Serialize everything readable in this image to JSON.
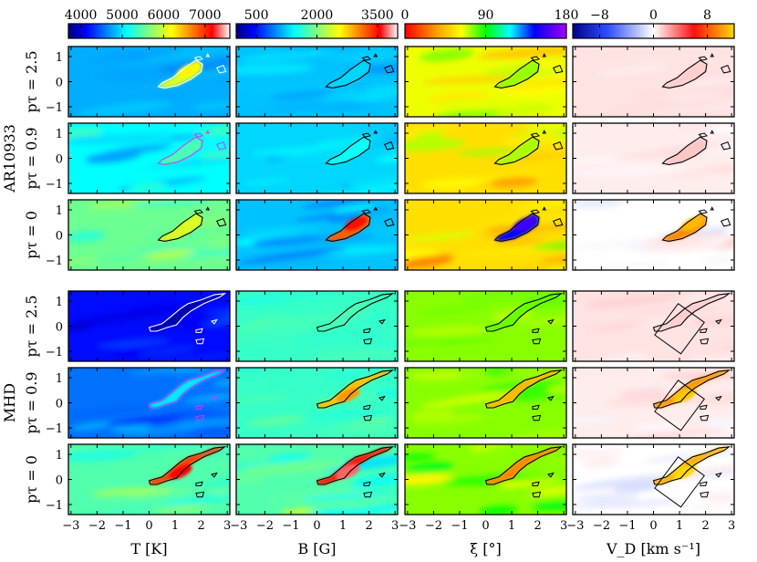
{
  "chart_data": {
    "type": "heatmap",
    "title": "",
    "row_groups": [
      {
        "name": "AR10933",
        "rows": [
          "pτ = 2.5",
          "pτ = 0.9",
          "pτ = 0"
        ]
      },
      {
        "name": "MHD",
        "rows": [
          "pτ = 2.5",
          "pτ = 0.9",
          "pτ = 0"
        ]
      }
    ],
    "columns": [
      {
        "quantity": "T",
        "xlabel": "T [K]",
        "colorbar_ticks": [
          "4000",
          "5000",
          "6000",
          "7000"
        ],
        "colorbar_values": [
          4000,
          5000,
          6000,
          7000
        ],
        "colorbar_range": [
          3700,
          7600
        ],
        "colormap": "jet"
      },
      {
        "quantity": "B",
        "xlabel": "B [G]",
        "colorbar_ticks": [
          "500",
          "2000",
          "3500"
        ],
        "colorbar_values": [
          500,
          2000,
          3500
        ],
        "colorbar_range": [
          0,
          4000
        ],
        "colormap": "jet"
      },
      {
        "quantity": "xi",
        "xlabel": "ξ [°]",
        "colorbar_ticks": [
          "0",
          "90",
          "180"
        ],
        "colorbar_values": [
          0,
          90,
          180
        ],
        "colorbar_range": [
          0,
          180
        ],
        "colormap": "rainbow"
      },
      {
        "quantity": "V_D",
        "xlabel": "V_D [km s⁻¹]",
        "colorbar_ticks": [
          "−8",
          "0",
          "8"
        ],
        "colorbar_values": [
          -8,
          0,
          8
        ],
        "colorbar_range": [
          -12,
          12
        ],
        "colormap": "diverging"
      }
    ],
    "x_ticks": [
      "−3",
      "−2",
      "−1",
      "0",
      "1",
      "2",
      "3"
    ],
    "x_tick_values": [
      -3,
      -2,
      -1,
      0,
      1,
      2,
      3
    ],
    "y_ticks": [
      "−1",
      "0",
      "1"
    ],
    "y_tick_values": [
      -1,
      0,
      1
    ],
    "xlim": [
      -3.1,
      3.1
    ],
    "ylim": [
      -1.4,
      1.4
    ],
    "panels": [
      [
        {
          "base": 0.28,
          "blob": 0.32,
          "bands": 0.05
        },
        {
          "base": 0.3,
          "blob": 0.02,
          "bands": 0.06
        },
        {
          "base": 0.36,
          "blob": 0.05,
          "bands": 0.1
        },
        {
          "base": 0.53,
          "blob": 0.02,
          "bands": 0.01
        }
      ],
      [
        {
          "base": 0.36,
          "blob": 0.08,
          "bands": 0.1
        },
        {
          "base": 0.32,
          "blob": 0.05,
          "bands": 0.06
        },
        {
          "base": 0.3,
          "blob": 0.1,
          "bands": 0.12
        },
        {
          "base": 0.52,
          "blob": 0.04,
          "bands": 0.02
        }
      ],
      [
        {
          "base": 0.48,
          "blob": 0.12,
          "bands": 0.08
        },
        {
          "base": 0.3,
          "blob": 0.5,
          "bands": 0.08
        },
        {
          "base": 0.3,
          "blob": 0.5,
          "bands": 0.14
        },
        {
          "base": 0.5,
          "blob": 0.4,
          "bands": 0.05
        }
      ],
      [
        {
          "base": 0.12,
          "blob": -0.08,
          "bands": 0.06
        },
        {
          "base": 0.42,
          "blob": 0.02,
          "bands": 0.03
        },
        {
          "base": 0.42,
          "blob": 0.02,
          "bands": 0.03
        },
        {
          "base": 0.53,
          "blob": 0.02,
          "bands": 0.02
        }
      ],
      [
        {
          "base": 0.22,
          "blob": 0.12,
          "bands": 0.08
        },
        {
          "base": 0.42,
          "blob": 0.28,
          "bands": 0.05
        },
        {
          "base": 0.42,
          "blob": -0.18,
          "bands": 0.06
        },
        {
          "base": 0.52,
          "blob": 0.4,
          "bands": 0.05
        }
      ],
      [
        {
          "base": 0.45,
          "blob": 0.38,
          "bands": 0.1
        },
        {
          "base": 0.45,
          "blob": 0.42,
          "bands": 0.12
        },
        {
          "base": 0.42,
          "blob": -0.25,
          "bands": 0.1
        },
        {
          "base": 0.5,
          "blob": 0.45,
          "bands": 0.06
        }
      ]
    ]
  }
}
